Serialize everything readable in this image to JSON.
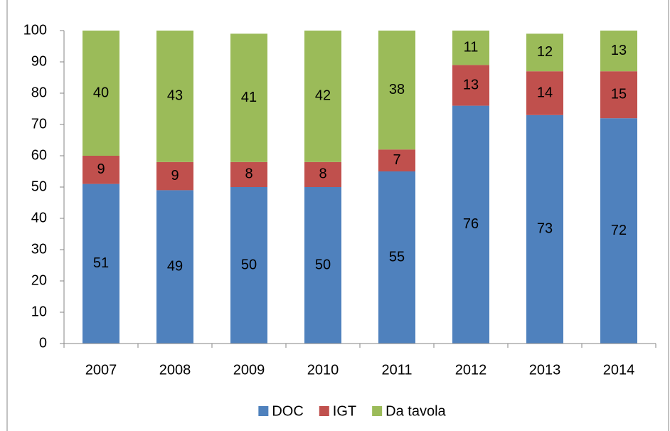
{
  "chart_data": {
    "type": "stacked_bar",
    "categories": [
      "2007",
      "2008",
      "2009",
      "2010",
      "2011",
      "2012",
      "2013",
      "2014"
    ],
    "series": [
      {
        "name": "DOC",
        "color": "#4f81bd",
        "values": [
          51,
          49,
          50,
          50,
          55,
          76,
          73,
          72
        ]
      },
      {
        "name": "IGT",
        "color": "#c0504d",
        "values": [
          9,
          9,
          8,
          8,
          7,
          13,
          14,
          15
        ]
      },
      {
        "name": "Da tavola",
        "color": "#9bbb59",
        "values": [
          40,
          43,
          41,
          42,
          38,
          11,
          12,
          13
        ]
      }
    ],
    "ylim": [
      0,
      100
    ],
    "yticks": [
      0,
      10,
      20,
      30,
      40,
      50,
      60,
      70,
      80,
      90,
      100
    ],
    "grid": false,
    "legend": "bottom"
  }
}
